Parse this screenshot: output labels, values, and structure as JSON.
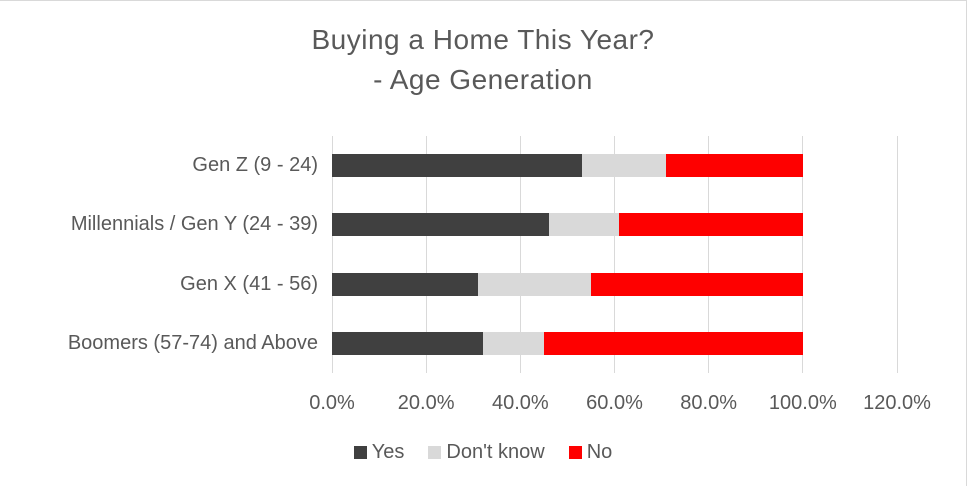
{
  "chart_data": {
    "type": "bar",
    "orientation": "horizontal",
    "stacked": true,
    "title": "Buying a Home This Year? - Age Generation",
    "title_lines": [
      "Buying a Home This Year?",
      "- Age Generation"
    ],
    "categories": [
      "Gen Z (9 - 24)",
      "Millennials / Gen Y (24 - 39)",
      "Gen X (41 - 56)",
      "Boomers (57-74) and Above"
    ],
    "series": [
      {
        "name": "Yes",
        "color": "#404040",
        "values": [
          53,
          46,
          31,
          32
        ]
      },
      {
        "name": "Don't know",
        "color": "#d9d9d9",
        "values": [
          18,
          15,
          24,
          13
        ]
      },
      {
        "name": "No",
        "color": "#fe0000",
        "values": [
          29,
          39,
          45,
          55
        ]
      }
    ],
    "x_ticks": [
      "0.0%",
      "20.0%",
      "40.0%",
      "60.0%",
      "80.0%",
      "100.0%",
      "120.0%"
    ],
    "x_tick_values": [
      0,
      20,
      40,
      60,
      80,
      100,
      120
    ],
    "xlim": [
      0,
      120
    ],
    "grid": true,
    "gridline_color": "#d9d9d9",
    "text_color": "#595959",
    "legend_position": "bottom"
  }
}
